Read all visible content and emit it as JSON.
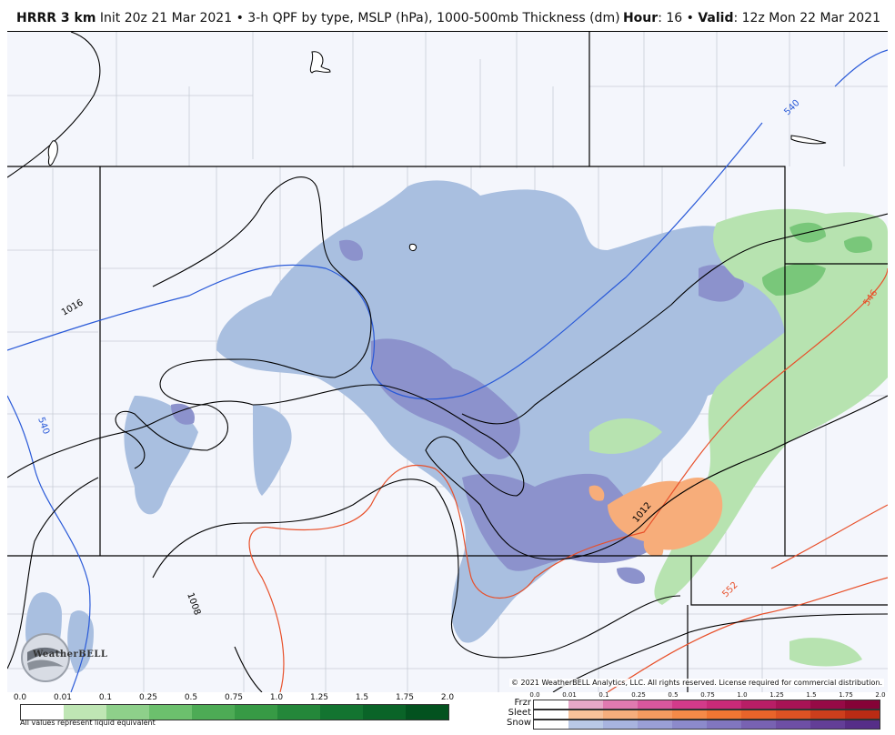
{
  "header": {
    "model": "HRRR 3 km",
    "init": "Init 20z 21 Mar 2021",
    "sep": "•",
    "product": "3-h QPF by type, MSLP (hPa), 1000-500mb Thickness (dm)",
    "hour_label": "Hour",
    "hour_value": ": 16",
    "valid_label": "Valid",
    "valid_value": ": 12z Mon 22 Mar 2021"
  },
  "map": {
    "isobar_labels": [
      "1016",
      "1012",
      "1008"
    ],
    "thickness_labels": [
      "540",
      "540",
      "546",
      "552"
    ],
    "colors": {
      "background": "#f4f6fc",
      "snow_light": "#a9bfe0",
      "snow_medium": "#8c92cc",
      "rain_light": "#b7e3b0",
      "rain_medium": "#79c77a",
      "sleet": "#f7ad7a",
      "isobar": "#000000",
      "thickness_cold": "#2a5ad8",
      "thickness_warm": "#e8502a",
      "border": "#000000",
      "county": "#c8ccd6"
    },
    "copyright": "© 2021 WeatherBELL Analytics, LLC. All rights reserved. License required for commercial distribution.",
    "logo": "WeatherBELL"
  },
  "rain_legend": {
    "ticks": [
      "0.0",
      "0.01",
      "0.1",
      "0.25",
      "0.5",
      "0.75",
      "1.0",
      "1.25",
      "1.5",
      "1.75",
      "2.0"
    ],
    "colors": [
      "#ffffff",
      "#bfe6b4",
      "#8ed08a",
      "#6cc06d",
      "#4dab55",
      "#379a45",
      "#24873a",
      "#137430",
      "#0a6428",
      "#03521f"
    ],
    "note": "All values represent liquid equivalent"
  },
  "ptype_legend": {
    "ticks": [
      "0.0",
      "0.01",
      "0.1",
      "0.25",
      "0.5",
      "0.75",
      "1.0",
      "1.25",
      "1.5",
      "1.75",
      "2.0"
    ],
    "rows": [
      {
        "label": "Frzr",
        "colors": [
          "#ffffff",
          "#e6a8c8",
          "#e07ab0",
          "#d8579d",
          "#d33a8a",
          "#c92a78",
          "#b81e66",
          "#a71355",
          "#960a46",
          "#850337"
        ]
      },
      {
        "label": "Sleet",
        "colors": [
          "#ffffff",
          "#f7c29a",
          "#f6ae7c",
          "#f59b60",
          "#f48a48",
          "#ef7633",
          "#e8642a",
          "#dc5223",
          "#cc3e1c",
          "#ba2b14"
        ]
      },
      {
        "label": "Snow",
        "colors": [
          "#ffffff",
          "#b9c9e6",
          "#a8b4df",
          "#9a9fd6",
          "#8c8acb",
          "#8176bf",
          "#7862b2",
          "#6e4fa5",
          "#633e97",
          "#562e88"
        ]
      }
    ]
  }
}
